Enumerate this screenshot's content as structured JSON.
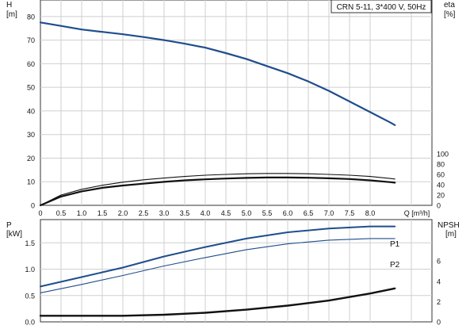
{
  "chart_data": [
    {
      "type": "line",
      "legend_box": "CRN 5-11, 3*400 V, 50Hz",
      "left_axis_label": "H",
      "left_axis_unit": "[m]",
      "right_axis_label": "eta",
      "right_axis_unit": "[%]",
      "x_axis_label": "Q [m³/h]",
      "x_ticks": [
        "0",
        "0.5",
        "1.0",
        "1.5",
        "2.0",
        "2.5",
        "3.0",
        "3.5",
        "4.0",
        "4.5",
        "5.0",
        "5.5",
        "6.0",
        "6.5",
        "7.0",
        "7.5",
        "8.0"
      ],
      "xlim": [
        0,
        9.5
      ],
      "left_ticks": [
        "0",
        "10",
        "20",
        "30",
        "40",
        "50",
        "60",
        "70",
        "80"
      ],
      "ylim_left": [
        0,
        87
      ],
      "right_ticks": [
        "0",
        "20",
        "40",
        "60",
        "80",
        "100"
      ],
      "grid": true,
      "series": [
        {
          "axis": "left",
          "color": "#1f4e8c",
          "x": [
            0,
            0.5,
            1.0,
            1.5,
            2.0,
            2.5,
            3.0,
            3.5,
            4.0,
            4.5,
            5.0,
            5.5,
            6.0,
            6.5,
            7.0,
            7.5,
            8.0,
            8.5,
            8.6
          ],
          "y": [
            77.5,
            76.0,
            74.5,
            73.5,
            72.5,
            71.3,
            70.0,
            68.5,
            66.8,
            64.5,
            62.0,
            59.0,
            56.0,
            52.5,
            48.5,
            44.0,
            39.5,
            35.0,
            34.0
          ]
        },
        {
          "axis": "right",
          "color": "#111111",
          "x": [
            0,
            0.5,
            1.0,
            1.5,
            2.0,
            2.5,
            3.0,
            3.5,
            4.0,
            4.5,
            5.0,
            5.5,
            6.0,
            6.5,
            7.0,
            7.5,
            8.0,
            8.5,
            8.6
          ],
          "y": [
            0,
            20,
            31,
            39,
            45,
            49.5,
            53,
            56,
            58.5,
            60,
            61.2,
            61.8,
            61.8,
            61.2,
            60,
            58.5,
            56,
            52,
            51
          ]
        },
        {
          "axis": "right",
          "color": "#111111",
          "x": [
            0,
            0.5,
            1.0,
            1.5,
            2.0,
            2.5,
            3.0,
            3.5,
            4.0,
            4.5,
            5.0,
            5.5,
            6.0,
            6.5,
            7.0,
            7.5,
            8.0,
            8.5,
            8.6
          ],
          "y": [
            0,
            17,
            27,
            34,
            38.5,
            42,
            45.5,
            48.5,
            50.5,
            52,
            53.2,
            54,
            54,
            53.5,
            52.5,
            51,
            48.5,
            45,
            44
          ]
        }
      ]
    },
    {
      "type": "line",
      "left_axis_label": "P",
      "left_axis_unit": "[kW]",
      "right_axis_label": "NPSH",
      "right_axis_unit": "[m]",
      "left_ticks": [
        "0.0",
        "0.5",
        "1.0",
        "1.5"
      ],
      "ylim_left": [
        0,
        1.94
      ],
      "right_ticks": [
        "0",
        "2",
        "4",
        "6"
      ],
      "grid": true,
      "series": [
        {
          "name": "P1",
          "axis": "left",
          "color": "#1f4e8c",
          "x": [
            0,
            1,
            2,
            3,
            4,
            5,
            6,
            7,
            8,
            8.6
          ],
          "y": [
            0.67,
            0.85,
            1.03,
            1.24,
            1.42,
            1.58,
            1.7,
            1.77,
            1.81,
            1.81
          ]
        },
        {
          "name": "P2",
          "axis": "left",
          "color": "#1f4e8c",
          "x": [
            0,
            1,
            2,
            3,
            4,
            5,
            6,
            7,
            8,
            8.6
          ],
          "y": [
            0.55,
            0.71,
            0.88,
            1.06,
            1.22,
            1.37,
            1.48,
            1.55,
            1.58,
            1.58
          ]
        },
        {
          "axis": "right",
          "color": "#111111",
          "x": [
            0,
            1,
            2,
            3,
            4,
            5,
            6,
            7,
            8,
            8.6
          ],
          "y": [
            0.6,
            0.6,
            0.6,
            0.7,
            0.9,
            1.2,
            1.6,
            2.1,
            2.8,
            3.3
          ]
        }
      ]
    }
  ]
}
